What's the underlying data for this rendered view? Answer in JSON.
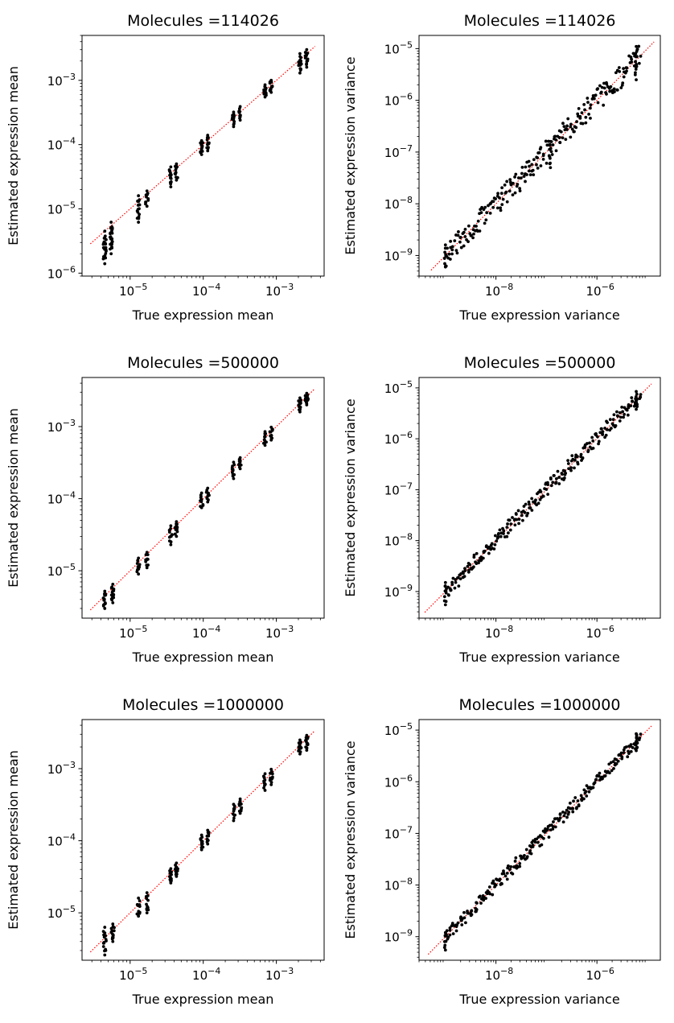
{
  "figure": {
    "charts": [
      {
        "title": "Molecules $=114026$",
        "title_display": "Molecules  =114026",
        "xlabel": "True expression mean",
        "ylabel": "Estimated expression mean",
        "kind": "mean"
      },
      {
        "title": "Molecules $=114026$",
        "title_display": "Molecules  =114026",
        "xlabel": "True expression variance",
        "ylabel": "Estimated expression variance",
        "kind": "variance"
      },
      {
        "title": "Molecules $=500000$",
        "title_display": "Molecules  =500000",
        "xlabel": "True expression mean",
        "ylabel": "Estimated expression mean",
        "kind": "mean"
      },
      {
        "title": "Molecules $=500000$",
        "title_display": "Molecules  =500000",
        "xlabel": "True expression variance",
        "ylabel": "Estimated expression variance",
        "kind": "variance"
      },
      {
        "title": "Molecules $=1000000$",
        "title_display": "Molecules  =1000000",
        "xlabel": "True expression mean",
        "ylabel": "Estimated expression mean",
        "kind": "mean"
      },
      {
        "title": "Molecules $=1000000$",
        "title_display": "Molecules  =1000000",
        "xlabel": "True expression variance",
        "ylabel": "Estimated expression variance",
        "kind": "variance"
      }
    ]
  },
  "colors": {
    "points": "#000000",
    "reference_line": "#ff0000",
    "axes": "#000000"
  },
  "chart_data": [
    {
      "type": "scatter",
      "title": "Molecules =114026",
      "xlabel": "True expression mean",
      "ylabel": "Estimated expression mean",
      "xscale": "log",
      "yscale": "log",
      "xlim": [
        2.2e-06,
        0.0045
      ],
      "ylim": [
        9e-07,
        0.005
      ],
      "xticks": [
        1e-05,
        0.0001,
        0.001
      ],
      "yticks": [
        1e-06,
        1e-05,
        0.0001,
        0.001
      ],
      "grid": false,
      "reference_line": "y = x (red dotted)",
      "clusters": [
        {
          "x": 4.5e-06,
          "y_min": 1.4e-06,
          "y_max": 4.5e-06,
          "n": 22
        },
        {
          "x": 5.5e-06,
          "y_min": 2e-06,
          "y_max": 6.2e-06,
          "n": 22
        },
        {
          "x": 1.3e-05,
          "y_min": 6.2e-06,
          "y_max": 1.6e-05,
          "n": 14
        },
        {
          "x": 1.7e-05,
          "y_min": 1.1e-05,
          "y_max": 1.9e-05,
          "n": 10
        },
        {
          "x": 3.6e-05,
          "y_min": 2.2e-05,
          "y_max": 4.5e-05,
          "n": 14
        },
        {
          "x": 4.3e-05,
          "y_min": 2.8e-05,
          "y_max": 5e-05,
          "n": 10
        },
        {
          "x": 9.5e-05,
          "y_min": 7e-05,
          "y_max": 0.000115,
          "n": 10
        },
        {
          "x": 0.000115,
          "y_min": 8e-05,
          "y_max": 0.00014,
          "n": 10
        },
        {
          "x": 0.00026,
          "y_min": 0.00019,
          "y_max": 0.00032,
          "n": 12
        },
        {
          "x": 0.00032,
          "y_min": 0.00024,
          "y_max": 0.00039,
          "n": 10
        },
        {
          "x": 0.0007,
          "y_min": 0.00055,
          "y_max": 0.00085,
          "n": 10
        },
        {
          "x": 0.00085,
          "y_min": 0.00065,
          "y_max": 0.001,
          "n": 10
        },
        {
          "x": 0.0021,
          "y_min": 0.0013,
          "y_max": 0.0026,
          "n": 14
        },
        {
          "x": 0.0026,
          "y_min": 0.0016,
          "y_max": 0.003,
          "n": 14
        }
      ]
    },
    {
      "type": "scatter",
      "title": "Molecules =114026",
      "xlabel": "True expression variance",
      "ylabel": "Estimated expression variance",
      "xscale": "log",
      "yscale": "log",
      "xlim": [
        3e-10,
        1.8e-05
      ],
      "ylim": [
        4e-10,
        1.8e-05
      ],
      "xticks": [
        1e-08,
        1e-06
      ],
      "yticks": [
        1e-09,
        1e-08,
        1e-07,
        1e-06,
        1e-05
      ],
      "grid": false,
      "reference_line": "y = x (red dotted)",
      "diagonal_points": {
        "x_min": 1e-09,
        "x_max": 7e-06,
        "n": 80,
        "spread_dex": 0.22
      },
      "clusters": [
        {
          "x": 1e-09,
          "y_min": 6e-10,
          "y_max": 1.6e-09,
          "n": 6
        },
        {
          "x": 6e-06,
          "y_min": 2.5e-06,
          "y_max": 1.1e-05,
          "n": 12
        },
        {
          "x": 1.2e-07,
          "y_min": 5e-08,
          "y_max": 1.6e-07,
          "n": 8
        }
      ]
    },
    {
      "type": "scatter",
      "title": "Molecules =500000",
      "xlabel": "True expression mean",
      "ylabel": "Estimated expression mean",
      "xscale": "log",
      "yscale": "log",
      "xlim": [
        2.2e-06,
        0.0045
      ],
      "ylim": [
        2.2e-06,
        0.0048
      ],
      "xticks": [
        1e-05,
        0.0001,
        0.001
      ],
      "yticks": [
        1e-05,
        0.0001,
        0.001
      ],
      "grid": false,
      "reference_line": "y = x (red dotted)",
      "clusters": [
        {
          "x": 4.5e-06,
          "y_min": 3e-06,
          "y_max": 5.2e-06,
          "n": 14
        },
        {
          "x": 5.8e-06,
          "y_min": 3.6e-06,
          "y_max": 6.5e-06,
          "n": 14
        },
        {
          "x": 1.3e-05,
          "y_min": 9e-06,
          "y_max": 1.5e-05,
          "n": 10
        },
        {
          "x": 1.7e-05,
          "y_min": 1.1e-05,
          "y_max": 1.8e-05,
          "n": 10
        },
        {
          "x": 3.6e-05,
          "y_min": 2.3e-05,
          "y_max": 4.2e-05,
          "n": 10
        },
        {
          "x": 4.3e-05,
          "y_min": 3e-05,
          "y_max": 4.8e-05,
          "n": 10
        },
        {
          "x": 9.5e-05,
          "y_min": 7.5e-05,
          "y_max": 0.00012,
          "n": 10
        },
        {
          "x": 0.000115,
          "y_min": 9e-05,
          "y_max": 0.00014,
          "n": 10
        },
        {
          "x": 0.00026,
          "y_min": 0.00019,
          "y_max": 0.00032,
          "n": 10
        },
        {
          "x": 0.00032,
          "y_min": 0.00026,
          "y_max": 0.00037,
          "n": 10
        },
        {
          "x": 0.0007,
          "y_min": 0.00055,
          "y_max": 0.00085,
          "n": 10
        },
        {
          "x": 0.00085,
          "y_min": 0.00065,
          "y_max": 0.00098,
          "n": 10
        },
        {
          "x": 0.0021,
          "y_min": 0.0016,
          "y_max": 0.0025,
          "n": 12
        },
        {
          "x": 0.0026,
          "y_min": 0.002,
          "y_max": 0.0029,
          "n": 12
        }
      ]
    },
    {
      "type": "scatter",
      "title": "Molecules =500000",
      "xlabel": "True expression variance",
      "ylabel": "Estimated expression variance",
      "xscale": "log",
      "yscale": "log",
      "xlim": [
        3e-10,
        1.8e-05
      ],
      "ylim": [
        3e-10,
        1.6e-05
      ],
      "xticks": [
        1e-08,
        1e-06
      ],
      "yticks": [
        1e-09,
        1e-08,
        1e-07,
        1e-06,
        1e-05
      ],
      "grid": false,
      "reference_line": "y = x (red dotted)",
      "diagonal_points": {
        "x_min": 1e-09,
        "x_max": 7e-06,
        "n": 80,
        "spread_dex": 0.14
      },
      "clusters": [
        {
          "x": 1e-09,
          "y_min": 5.5e-10,
          "y_max": 1.5e-09,
          "n": 6
        },
        {
          "x": 6e-06,
          "y_min": 3.8e-06,
          "y_max": 8.5e-06,
          "n": 10
        }
      ]
    },
    {
      "type": "scatter",
      "title": "Molecules =1000000",
      "xlabel": "True expression mean",
      "ylabel": "Estimated expression mean",
      "xscale": "log",
      "yscale": "log",
      "xlim": [
        2.2e-06,
        0.0045
      ],
      "ylim": [
        2.2e-06,
        0.0048
      ],
      "xticks": [
        1e-05,
        0.0001,
        0.001
      ],
      "yticks": [
        1e-05,
        0.0001,
        0.001
      ],
      "grid": false,
      "reference_line": "y = x (red dotted)",
      "clusters": [
        {
          "x": 4.5e-06,
          "y_min": 2.6e-06,
          "y_max": 6.3e-06,
          "n": 14
        },
        {
          "x": 5.8e-06,
          "y_min": 4e-06,
          "y_max": 7e-06,
          "n": 14
        },
        {
          "x": 1.3e-05,
          "y_min": 9e-06,
          "y_max": 1.6e-05,
          "n": 10
        },
        {
          "x": 1.7e-05,
          "y_min": 1e-05,
          "y_max": 1.9e-05,
          "n": 10
        },
        {
          "x": 3.6e-05,
          "y_min": 2.6e-05,
          "y_max": 4.1e-05,
          "n": 10
        },
        {
          "x": 4.3e-05,
          "y_min": 3.2e-05,
          "y_max": 4.9e-05,
          "n": 10
        },
        {
          "x": 9.5e-05,
          "y_min": 7.5e-05,
          "y_max": 0.00012,
          "n": 10
        },
        {
          "x": 0.000115,
          "y_min": 9e-05,
          "y_max": 0.00014,
          "n": 10
        },
        {
          "x": 0.00026,
          "y_min": 0.00019,
          "y_max": 0.00032,
          "n": 10
        },
        {
          "x": 0.00032,
          "y_min": 0.00024,
          "y_max": 0.00038,
          "n": 10
        },
        {
          "x": 0.0007,
          "y_min": 0.0005,
          "y_max": 0.00085,
          "n": 10
        },
        {
          "x": 0.00085,
          "y_min": 0.0006,
          "y_max": 0.00098,
          "n": 10
        },
        {
          "x": 0.0021,
          "y_min": 0.0016,
          "y_max": 0.0025,
          "n": 12
        },
        {
          "x": 0.0026,
          "y_min": 0.0018,
          "y_max": 0.0029,
          "n": 12
        }
      ]
    },
    {
      "type": "scatter",
      "title": "Molecules =1000000",
      "xlabel": "True expression variance",
      "ylabel": "Estimated expression variance",
      "xscale": "log",
      "yscale": "log",
      "xlim": [
        3e-10,
        1.8e-05
      ],
      "ylim": [
        3.5e-10,
        1.6e-05
      ],
      "xticks": [
        1e-08,
        1e-06
      ],
      "yticks": [
        1e-09,
        1e-08,
        1e-07,
        1e-06,
        1e-05
      ],
      "grid": false,
      "reference_line": "y = x (red dotted)",
      "diagonal_points": {
        "x_min": 1e-09,
        "x_max": 7e-06,
        "n": 80,
        "spread_dex": 0.12
      },
      "clusters": [
        {
          "x": 1e-09,
          "y_min": 5.5e-10,
          "y_max": 1.2e-09,
          "n": 6
        },
        {
          "x": 6e-06,
          "y_min": 4e-06,
          "y_max": 8.5e-06,
          "n": 10
        }
      ]
    }
  ]
}
